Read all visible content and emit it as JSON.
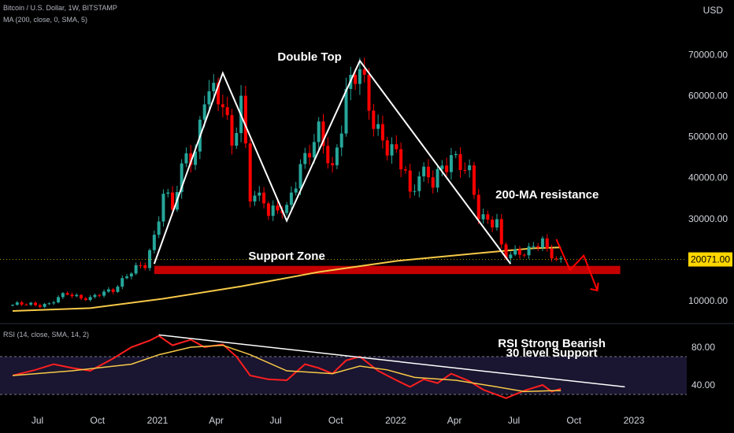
{
  "header": {
    "symbol_line": "Bitcoin / U.S. Dollar, 1W, BITSTAMP",
    "ma_line": "MA (200, close, 0, SMA, 5)",
    "currency": "USD",
    "rsi_line": "RSI (14, close, SMA, 14, 2)"
  },
  "colors": {
    "background": "#000000",
    "up_candle": "#26a69a",
    "down_candle": "#ff0000",
    "ma_line": "#f7c948",
    "rsi_line": "#ff1f1f",
    "rsi_ma_line": "#f7c948",
    "annotation": "#ffffff",
    "support_zone": "#c40000",
    "price_tag": "#ffd600"
  },
  "chart_data": [
    {
      "type": "candlestick",
      "title": "Bitcoin / U.S. Dollar, 1W, BITSTAMP",
      "y_axis_label": "USD",
      "y_ticks": [
        10000,
        20000,
        30000,
        40000,
        50000,
        60000,
        70000
      ],
      "y_tick_labels": [
        "10000.00",
        "20000.00",
        "30000.00",
        "40000.00",
        "50000.00",
        "60000.00",
        "70000.00"
      ],
      "x_tick_labels": [
        "Jul",
        "Oct",
        "2021",
        "Apr",
        "Jul",
        "Oct",
        "2022",
        "Apr",
        "Jul",
        "Oct",
        "2023"
      ],
      "last_price_label": "20071.00",
      "last_price": 20071,
      "price_anchors": [
        [
          "2020-05-24",
          9000
        ],
        [
          "2020-07-19",
          9200
        ],
        [
          "2020-08-16",
          11800
        ],
        [
          "2020-09-20",
          10400
        ],
        [
          "2020-10-25",
          13000
        ],
        [
          "2020-11-15",
          16000
        ],
        [
          "2020-12-13",
          19000
        ],
        [
          "2020-12-27",
          26000
        ],
        [
          "2021-01-10",
          36000
        ],
        [
          "2021-01-24",
          32000
        ],
        [
          "2021-02-14",
          47000
        ],
        [
          "2021-02-28",
          46000
        ],
        [
          "2021-03-14",
          59000
        ],
        [
          "2021-04-11",
          60000
        ],
        [
          "2021-04-25",
          49000
        ],
        [
          "2021-05-09",
          57000
        ],
        [
          "2021-05-23",
          35000
        ],
        [
          "2021-06-13",
          36000
        ],
        [
          "2021-06-20",
          32000
        ],
        [
          "2021-07-18",
          31500
        ],
        [
          "2021-08-08",
          44000
        ],
        [
          "2021-09-05",
          50000
        ],
        [
          "2021-09-26",
          42000
        ],
        [
          "2021-10-17",
          61000
        ],
        [
          "2021-11-07",
          65000
        ],
        [
          "2021-11-28",
          55000
        ],
        [
          "2021-12-19",
          47000
        ],
        [
          "2022-01-16",
          42000
        ],
        [
          "2022-01-23",
          36000
        ],
        [
          "2022-02-06",
          42000
        ],
        [
          "2022-02-27",
          38000
        ],
        [
          "2022-03-27",
          46500
        ],
        [
          "2022-04-24",
          40000
        ],
        [
          "2022-05-08",
          31000
        ],
        [
          "2022-06-05",
          29500
        ],
        [
          "2022-06-12",
          22500
        ],
        [
          "2022-06-19",
          20500
        ],
        [
          "2022-07-17",
          22500
        ],
        [
          "2022-08-14",
          24000
        ],
        [
          "2022-08-21",
          21500
        ],
        [
          "2022-09-11",
          20071
        ]
      ],
      "overlays": [
        {
          "name": "MA (200, close, 0, SMA, 5)",
          "points": [
            [
              "2020-05-24",
              7500
            ],
            [
              "2020-09-20",
              8200
            ],
            [
              "2021-01-10",
              10500
            ],
            [
              "2021-05-09",
              13500
            ],
            [
              "2021-09-05",
              17000
            ],
            [
              "2022-01-02",
              19700
            ],
            [
              "2022-05-01",
              21500
            ],
            [
              "2022-07-31",
              22800
            ],
            [
              "2022-09-11",
              23000
            ]
          ]
        }
      ],
      "annotations": [
        {
          "kind": "text",
          "text": "Double Top",
          "at": [
            "2021-08-22",
            68500
          ]
        },
        {
          "kind": "text",
          "text": "200-MA resistance",
          "at": [
            "2022-08-21",
            35000
          ]
        },
        {
          "kind": "text",
          "text": "Support Zone",
          "at": [
            "2021-07-18",
            20000
          ]
        },
        {
          "kind": "zone",
          "name": "support-zone",
          "from": "2020-12-27",
          "to": "2022-12-11",
          "y_low": 16500,
          "y_high": 18500
        },
        {
          "kind": "polyline",
          "name": "double-top-pattern",
          "points": [
            [
              "2020-12-27",
              19000
            ],
            [
              "2021-04-11",
              65500
            ],
            [
              "2021-07-18",
              29500
            ],
            [
              "2021-11-07",
              68500
            ],
            [
              "2022-06-26",
              19000
            ]
          ]
        },
        {
          "kind": "arrow",
          "name": "projection-arrow",
          "points": [
            [
              "2022-09-04",
              25000
            ],
            [
              "2022-09-25",
              17500
            ],
            [
              "2022-10-16",
              21000
            ],
            [
              "2022-11-06",
              12500
            ]
          ]
        }
      ]
    },
    {
      "type": "line",
      "title": "RSI (14, close, SMA, 14, 2)",
      "y_ticks": [
        40,
        80
      ],
      "y_tick_labels": [
        "40.00",
        "80.00"
      ],
      "band": [
        30,
        70
      ],
      "series": [
        {
          "name": "RSI",
          "points": [
            [
              "2020-05-24",
              50
            ],
            [
              "2020-06-28",
              56
            ],
            [
              "2020-07-26",
              62
            ],
            [
              "2020-08-23",
              58
            ],
            [
              "2020-09-20",
              55
            ],
            [
              "2020-10-25",
              68
            ],
            [
              "2020-11-22",
              80
            ],
            [
              "2020-12-20",
              87
            ],
            [
              "2021-01-03",
              92
            ],
            [
              "2021-01-24",
              82
            ],
            [
              "2021-02-21",
              88
            ],
            [
              "2021-03-14",
              80
            ],
            [
              "2021-04-11",
              83
            ],
            [
              "2021-05-02",
              70
            ],
            [
              "2021-05-23",
              50
            ],
            [
              "2021-06-20",
              46
            ],
            [
              "2021-07-18",
              45
            ],
            [
              "2021-08-15",
              62
            ],
            [
              "2021-09-05",
              58
            ],
            [
              "2021-09-26",
              52
            ],
            [
              "2021-10-17",
              66
            ],
            [
              "2021-11-07",
              70
            ],
            [
              "2021-12-05",
              55
            ],
            [
              "2022-01-02",
              45
            ],
            [
              "2022-01-23",
              38
            ],
            [
              "2022-02-13",
              46
            ],
            [
              "2022-03-06",
              42
            ],
            [
              "2022-03-27",
              52
            ],
            [
              "2022-04-24",
              44
            ],
            [
              "2022-05-15",
              35
            ],
            [
              "2022-06-19",
              26
            ],
            [
              "2022-07-17",
              34
            ],
            [
              "2022-08-14",
              40
            ],
            [
              "2022-08-28",
              33
            ],
            [
              "2022-09-11",
              36
            ]
          ]
        },
        {
          "name": "RSI-based MA",
          "points": [
            [
              "2020-05-24",
              50
            ],
            [
              "2020-08-23",
              55
            ],
            [
              "2020-11-22",
              62
            ],
            [
              "2021-01-03",
              72
            ],
            [
              "2021-02-21",
              80
            ],
            [
              "2021-04-11",
              82
            ],
            [
              "2021-05-23",
              72
            ],
            [
              "2021-07-18",
              55
            ],
            [
              "2021-09-26",
              52
            ],
            [
              "2021-11-07",
              60
            ],
            [
              "2021-12-19",
              56
            ],
            [
              "2022-01-30",
              48
            ],
            [
              "2022-04-03",
              45
            ],
            [
              "2022-06-05",
              38
            ],
            [
              "2022-07-17",
              33
            ],
            [
              "2022-08-28",
              34
            ],
            [
              "2022-09-11",
              34
            ]
          ]
        }
      ],
      "annotations": [
        {
          "kind": "text",
          "text": "RSI Strong Bearish",
          "at": [
            "2022-08-28",
            80
          ]
        },
        {
          "kind": "text",
          "text": "30 level Support",
          "at": [
            "2022-08-28",
            70
          ]
        },
        {
          "kind": "line",
          "name": "rsi-trendline",
          "points": [
            [
              "2021-01-03",
              93
            ],
            [
              "2022-12-18",
              38
            ]
          ]
        }
      ]
    }
  ]
}
